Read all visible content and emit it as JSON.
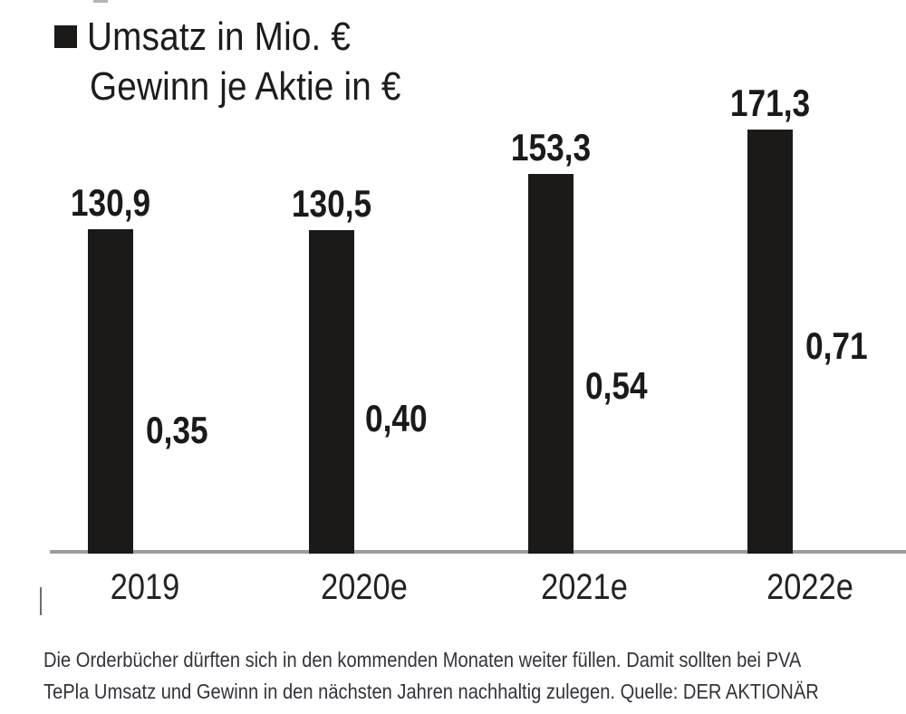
{
  "chart_data": {
    "type": "bar",
    "title": "",
    "categories": [
      "2019",
      "2020e",
      "2021e",
      "2022e"
    ],
    "series": [
      {
        "name": "Umsatz in Mio. €",
        "values": [
          130.9,
          130.5,
          153.3,
          171.3
        ],
        "display_labels": [
          "130,9",
          "130,5",
          "153,3",
          "171,3"
        ]
      },
      {
        "name": "Gewinn je Aktie in €",
        "values": [
          0.35,
          0.4,
          0.54,
          0.71
        ],
        "display_labels": [
          "0,35",
          "0,40",
          "0,54",
          "0,71"
        ]
      }
    ],
    "legend": [
      "Umsatz in Mio. €",
      "Gewinn je Aktie in €"
    ],
    "legend_position": "top-left",
    "grid": false,
    "axes": {
      "x_baseline_only": true,
      "ylim_umsatz": [
        0,
        180
      ],
      "ylim_gewinn": [
        0,
        0.8
      ]
    },
    "colors": {
      "bar": "#1b1a19",
      "label_text": "#1d1c1b",
      "axis_line": "#9c9c9c"
    }
  },
  "caption": {
    "lines": [
      "Die Orderbücher dürften sich in den kommenden Monaten weiter füllen. Damit sollten bei PVA",
      "TePla Umsatz und Gewinn in den nächsten Jahren nachhaltig zulegen. Quelle: DER AKTIONÄR"
    ]
  }
}
